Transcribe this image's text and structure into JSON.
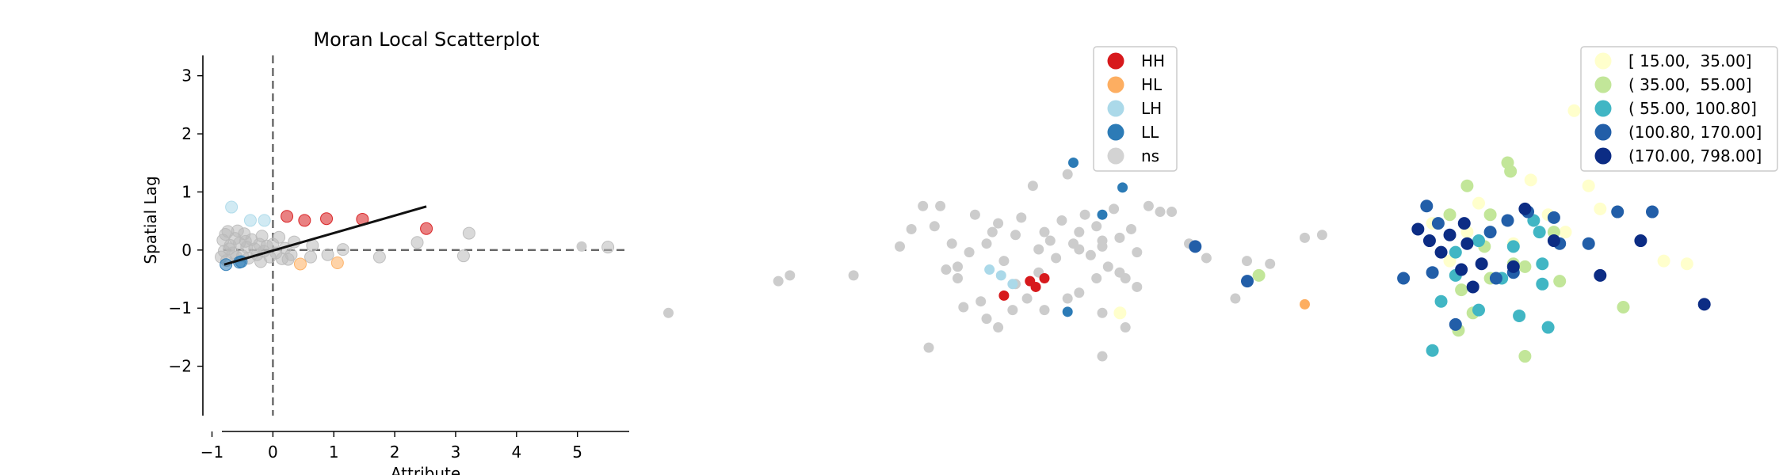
{
  "chart_data": [
    {
      "type": "scatter",
      "title": "Moran Local Scatterplot",
      "xlabel": "Attribute",
      "ylabel": "Spatial Lag",
      "xlim": [
        -1.15,
        5.85
      ],
      "ylim": [
        -2.85,
        3.35
      ],
      "xticks": [
        -1,
        0,
        1,
        2,
        3,
        4,
        5
      ],
      "yticks": [
        -2,
        -1,
        0,
        1,
        2,
        3
      ],
      "reference_lines": {
        "x": 0,
        "y": 0,
        "style": "dashed"
      },
      "regression_line": {
        "x": [
          -0.8,
          2.52
        ],
        "y": [
          -0.25,
          0.75
        ]
      },
      "series": [
        {
          "name": "HH",
          "color": "#d7191c",
          "points": [
            [
              0.23,
              0.58
            ],
            [
              0.52,
              0.51
            ],
            [
              0.88,
              0.54
            ],
            [
              1.47,
              0.53
            ],
            [
              2.52,
              0.37
            ]
          ]
        },
        {
          "name": "HL",
          "color": "#fdae61",
          "points": [
            [
              0.45,
              -0.24
            ],
            [
              1.06,
              -0.22
            ]
          ]
        },
        {
          "name": "LH",
          "color": "#abd9e9",
          "points": [
            [
              -0.68,
              0.74
            ],
            [
              -0.37,
              0.51
            ],
            [
              -0.14,
              0.51
            ]
          ]
        },
        {
          "name": "LL",
          "color": "#2c7bb6",
          "points": [
            [
              -0.77,
              -0.25
            ],
            [
              -0.55,
              -0.21
            ],
            [
              -0.52,
              -0.2
            ]
          ]
        },
        {
          "name": "ns",
          "color": "#bababa",
          "points": [
            [
              -0.82,
              0.17
            ],
            [
              -0.78,
              0.27
            ],
            [
              -0.74,
              0.32
            ],
            [
              -0.7,
              0.08
            ],
            [
              -0.66,
              -0.05
            ],
            [
              -0.62,
              0.2
            ],
            [
              -0.58,
              0.33
            ],
            [
              -0.55,
              0.12
            ],
            [
              -0.5,
              -0.1
            ],
            [
              -0.47,
              0.28
            ],
            [
              -0.43,
              0.05
            ],
            [
              -0.4,
              -0.14
            ],
            [
              -0.35,
              0.18
            ],
            [
              -0.3,
              0.02
            ],
            [
              -0.26,
              -0.08
            ],
            [
              -0.22,
              0.1
            ],
            [
              -0.18,
              0.24
            ],
            [
              -0.15,
              -0.02
            ],
            [
              -0.1,
              0.07
            ],
            [
              -0.05,
              -0.12
            ],
            [
              0.0,
              0.1
            ],
            [
              0.05,
              -0.05
            ],
            [
              0.1,
              0.22
            ],
            [
              0.15,
              -0.15
            ],
            [
              0.2,
              0.03
            ],
            [
              0.3,
              -0.08
            ],
            [
              0.35,
              0.14
            ],
            [
              -0.85,
              -0.12
            ],
            [
              -0.8,
              -0.02
            ],
            [
              -0.76,
              -0.18
            ],
            [
              -0.72,
              0.02
            ],
            [
              -0.6,
              -0.12
            ],
            [
              -0.45,
              0.15
            ],
            [
              -0.2,
              -0.2
            ],
            [
              0.25,
              -0.16
            ],
            [
              0.62,
              -0.12
            ],
            [
              0.65,
              0.08
            ],
            [
              0.9,
              -0.08
            ],
            [
              1.15,
              0.01
            ],
            [
              1.75,
              -0.12
            ],
            [
              2.37,
              0.13
            ],
            [
              3.13,
              -0.1
            ],
            [
              3.22,
              0.29
            ],
            [
              5.5,
              0.05
            ]
          ]
        }
      ]
    },
    {
      "type": "scatter",
      "title": "",
      "legend_position": "top-right",
      "categories": [
        "HH",
        "HL",
        "LH",
        "LL",
        "ns"
      ],
      "series": [
        {
          "name": "HH",
          "color": "#d7191c",
          "points": [
            [
              2.0,
              -0.5
            ],
            [
              1.75,
              -0.55
            ],
            [
              1.85,
              -0.65
            ],
            [
              1.3,
              -0.8
            ]
          ]
        },
        {
          "name": "HL",
          "color": "#fdae61",
          "points": [
            [
              6.5,
              -0.95
            ]
          ]
        },
        {
          "name": "LH",
          "color": "#abd9e9",
          "points": [
            [
              1.25,
              -0.45
            ],
            [
              1.45,
              -0.6
            ],
            [
              1.05,
              -0.35
            ]
          ]
        },
        {
          "name": "LL",
          "color": "#2c7bb6",
          "points": [
            [
              3.45,
              2.35
            ],
            [
              2.5,
              1.5
            ],
            [
              3.35,
              1.07
            ],
            [
              2.4,
              -1.08
            ],
            [
              3.0,
              0.6
            ]
          ]
        },
        {
          "name": "ns",
          "color": "#cccccc",
          "points": [
            [
              -6.0,
              0.05
            ],
            [
              -4.5,
              -1.1
            ],
            [
              -2.6,
              -0.55
            ],
            [
              -2.4,
              -0.45
            ],
            [
              -1.3,
              -0.45
            ],
            [
              -0.1,
              0.75
            ],
            [
              0.2,
              0.75
            ],
            [
              -0.5,
              0.05
            ],
            [
              -0.3,
              0.35
            ],
            [
              0.1,
              0.4
            ],
            [
              0.4,
              0.1
            ],
            [
              0.5,
              -0.3
            ],
            [
              0.8,
              0.6
            ],
            [
              1.0,
              0.1
            ],
            [
              1.2,
              0.45
            ],
            [
              1.3,
              -0.2
            ],
            [
              1.5,
              0.25
            ],
            [
              1.6,
              0.55
            ],
            [
              1.8,
              1.1
            ],
            [
              1.9,
              0.0
            ],
            [
              2.0,
              0.3
            ],
            [
              2.2,
              -0.15
            ],
            [
              2.3,
              0.5
            ],
            [
              2.4,
              1.3
            ],
            [
              2.5,
              0.1
            ],
            [
              2.6,
              0.3
            ],
            [
              2.7,
              0.6
            ],
            [
              2.8,
              -0.1
            ],
            [
              2.9,
              0.4
            ],
            [
              3.0,
              0.05
            ],
            [
              3.1,
              -0.3
            ],
            [
              3.2,
              0.7
            ],
            [
              3.3,
              0.2
            ],
            [
              3.4,
              -0.5
            ],
            [
              3.5,
              0.35
            ],
            [
              3.6,
              -0.05
            ],
            [
              3.8,
              0.75
            ],
            [
              4.0,
              0.65
            ],
            [
              4.2,
              0.65
            ],
            [
              4.5,
              0.1
            ],
            [
              4.8,
              -0.15
            ],
            [
              5.3,
              -0.85
            ],
            [
              5.5,
              -0.2
            ],
            [
              5.9,
              -0.25
            ],
            [
              6.5,
              0.2
            ],
            [
              6.8,
              0.25
            ],
            [
              0.3,
              -0.35
            ],
            [
              0.5,
              -0.5
            ],
            [
              0.6,
              -1.0
            ],
            [
              0.9,
              -0.9
            ],
            [
              1.0,
              -1.2
            ],
            [
              1.2,
              -1.35
            ],
            [
              1.45,
              -1.05
            ],
            [
              1.7,
              -0.85
            ],
            [
              2.0,
              -1.05
            ],
            [
              2.4,
              -0.85
            ],
            [
              2.6,
              -0.75
            ],
            [
              2.9,
              -0.5
            ],
            [
              3.0,
              -1.1
            ],
            [
              3.3,
              -0.4
            ],
            [
              3.4,
              -1.35
            ],
            [
              3.6,
              -0.65
            ],
            [
              0.0,
              -1.7
            ],
            [
              3.0,
              -1.85
            ],
            [
              0.7,
              -0.05
            ],
            [
              1.1,
              0.3
            ],
            [
              1.5,
              -0.6
            ],
            [
              2.1,
              0.15
            ],
            [
              3.0,
              0.15
            ],
            [
              2.6,
              0.0
            ],
            [
              1.9,
              -0.4
            ]
          ]
        }
      ]
    },
    {
      "type": "scatter",
      "title": "",
      "legend_position": "top-right",
      "categories": [
        "[ 15.00,  35.00]",
        "( 35.00,  55.00]",
        "( 55.00, 100.80]",
        "(100.80, 170.00]",
        "(170.00, 798.00]"
      ],
      "series": [
        {
          "name": "[ 15.00,  35.00]",
          "color": "#ffffcc",
          "points": [
            [
              3.65,
              2.4
            ],
            [
              4.1,
              0.7
            ],
            [
              4.4,
              0.65
            ],
            [
              5.2,
              -0.2
            ],
            [
              5.6,
              -0.25
            ],
            [
              -4.2,
              -1.1
            ],
            [
              1.2,
              0.45
            ],
            [
              1.8,
              0.3
            ],
            [
              3.5,
              0.3
            ],
            [
              2.9,
              1.2
            ],
            [
              3.2,
              0.6
            ],
            [
              1.5,
              -0.2
            ],
            [
              2.6,
              0.1
            ],
            [
              3.9,
              1.1
            ],
            [
              2.0,
              0.8
            ]
          ]
        },
        {
          "name": "( 35.00,  55.00]",
          "color": "#c2e699",
          "points": [
            [
              2.5,
              1.5
            ],
            [
              2.55,
              1.35
            ],
            [
              1.8,
              1.1
            ],
            [
              1.5,
              0.6
            ],
            [
              2.2,
              0.6
            ],
            [
              3.3,
              0.3
            ],
            [
              2.8,
              -0.3
            ],
            [
              3.4,
              -0.55
            ],
            [
              2.2,
              -0.5
            ],
            [
              1.7,
              -0.7
            ],
            [
              1.9,
              -1.1
            ],
            [
              1.65,
              -1.4
            ],
            [
              2.8,
              -1.85
            ],
            [
              4.5,
              -1.0
            ],
            [
              -1.8,
              -0.45
            ],
            [
              2.6,
              -0.25
            ],
            [
              2.1,
              0.05
            ]
          ]
        },
        {
          "name": "( 55.00, 100.80]",
          "color": "#41b6c4",
          "points": [
            [
              2.0,
              0.15
            ],
            [
              2.6,
              0.05
            ],
            [
              2.95,
              0.5
            ],
            [
              3.05,
              0.3
            ],
            [
              3.1,
              -0.25
            ],
            [
              1.6,
              -0.05
            ],
            [
              1.35,
              -0.9
            ],
            [
              2.0,
              -1.05
            ],
            [
              2.7,
              -1.15
            ],
            [
              3.2,
              -1.35
            ],
            [
              3.1,
              -0.6
            ],
            [
              1.2,
              -1.75
            ],
            [
              7.4,
              0.25
            ],
            [
              2.4,
              -0.5
            ],
            [
              1.6,
              -0.45
            ]
          ]
        },
        {
          "name": "(100.80, 170.00]",
          "color": "#225ea8",
          "points": [
            [
              1.1,
              0.75
            ],
            [
              1.3,
              0.45
            ],
            [
              -2.9,
              0.05
            ],
            [
              -2.0,
              -0.55
            ],
            [
              0.7,
              -0.5
            ],
            [
              1.2,
              -0.4
            ],
            [
              2.2,
              0.3
            ],
            [
              2.5,
              0.5
            ],
            [
              3.4,
              0.1
            ],
            [
              3.9,
              0.1
            ],
            [
              4.4,
              0.65
            ],
            [
              5.0,
              0.65
            ],
            [
              1.6,
              -1.3
            ],
            [
              2.6,
              -0.4
            ],
            [
              3.3,
              0.55
            ],
            [
              2.85,
              0.65
            ],
            [
              2.3,
              -0.5
            ]
          ]
        },
        {
          "name": "(170.00, 798.00]",
          "color": "#0c2c84",
          "points": [
            [
              0.95,
              0.35
            ],
            [
              1.15,
              0.15
            ],
            [
              1.5,
              0.25
            ],
            [
              1.75,
              0.45
            ],
            [
              1.8,
              0.1
            ],
            [
              2.05,
              -0.25
            ],
            [
              1.35,
              -0.05
            ],
            [
              1.7,
              -0.35
            ],
            [
              1.9,
              -0.65
            ],
            [
              2.8,
              0.7
            ],
            [
              3.3,
              0.15
            ],
            [
              4.1,
              -0.45
            ],
            [
              4.8,
              0.15
            ],
            [
              5.9,
              -0.95
            ],
            [
              2.6,
              -0.3
            ]
          ]
        }
      ]
    }
  ],
  "legends": {
    "clusters": [
      {
        "label": "HH",
        "color": "#d7191c"
      },
      {
        "label": "HL",
        "color": "#fdae61"
      },
      {
        "label": "LH",
        "color": "#abd9e9"
      },
      {
        "label": "LL",
        "color": "#2c7bb6"
      },
      {
        "label": "ns",
        "color": "#d3d3d3"
      }
    ],
    "bins": [
      {
        "label": "[ 15.00,  35.00]",
        "color": "#ffffcc"
      },
      {
        "label": "( 35.00,  55.00]",
        "color": "#c2e699"
      },
      {
        "label": "( 55.00, 100.80]",
        "color": "#41b6c4"
      },
      {
        "label": "(100.80, 170.00]",
        "color": "#225ea8"
      },
      {
        "label": "(170.00, 798.00]",
        "color": "#0c2c84"
      }
    ]
  }
}
